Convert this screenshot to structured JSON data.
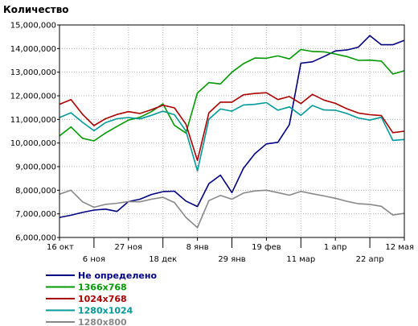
{
  "chart_data": {
    "type": "line",
    "ylabel": "Количество",
    "ylim": [
      6000000,
      15000000
    ],
    "y_ticks": [
      6000000,
      7000000,
      8000000,
      9000000,
      10000000,
      11000000,
      12000000,
      13000000,
      14000000,
      15000000
    ],
    "y_tick_labels": [
      "6,000,000",
      "7,000,000",
      "8,000,000",
      "9,000,000",
      "10,000,000",
      "11,000,000",
      "12,000,000",
      "13,000,000",
      "14,000,000",
      "15,000,000"
    ],
    "x_tick_labels": [
      {
        "text": "16 окт",
        "index": 0,
        "row": 1
      },
      {
        "text": "6 ноя",
        "index": 3,
        "row": 2
      },
      {
        "text": "27 ноя",
        "index": 6,
        "row": 1
      },
      {
        "text": "18 дек",
        "index": 9,
        "row": 2
      },
      {
        "text": "8 янв",
        "index": 12,
        "row": 1
      },
      {
        "text": "29 янв",
        "index": 15,
        "row": 2
      },
      {
        "text": "19 фев",
        "index": 18,
        "row": 1
      },
      {
        "text": "11 мар",
        "index": 21,
        "row": 2
      },
      {
        "text": "1 апр",
        "index": 24,
        "row": 1
      },
      {
        "text": "22 апр",
        "index": 27,
        "row": 2
      },
      {
        "text": "12 мая",
        "index": 30,
        "row": 1
      }
    ],
    "x_count": 31,
    "grid": true,
    "legend_position": "bottom-left",
    "series": [
      {
        "name": "Не определено",
        "color": "#000080",
        "values": [
          6850000,
          6940000,
          7060000,
          7160000,
          7200000,
          7100000,
          7520000,
          7620000,
          7820000,
          7940000,
          7960000,
          7540000,
          7310000,
          8280000,
          8640000,
          7900000,
          8930000,
          9550000,
          9960000,
          10030000,
          10780000,
          13380000,
          13440000,
          13660000,
          13900000,
          13940000,
          14060000,
          14550000,
          14160000,
          14160000,
          14350000
        ]
      },
      {
        "name": "1366x768",
        "color": "#009900",
        "values": [
          10300000,
          10680000,
          10200000,
          10090000,
          10420000,
          10700000,
          10970000,
          11090000,
          11330000,
          11660000,
          10750000,
          10420000,
          12120000,
          12560000,
          12500000,
          13000000,
          13360000,
          13600000,
          13590000,
          13690000,
          13560000,
          13960000,
          13880000,
          13860000,
          13770000,
          13660000,
          13500000,
          13510000,
          13470000,
          12920000,
          13060000
        ]
      },
      {
        "name": "1024x768",
        "color": "#AA0000",
        "values": [
          11640000,
          11840000,
          11220000,
          10740000,
          11030000,
          11210000,
          11330000,
          11250000,
          11410000,
          11600000,
          11490000,
          10800000,
          9260000,
          11280000,
          11730000,
          11730000,
          12040000,
          12100000,
          12130000,
          11840000,
          11970000,
          11670000,
          12060000,
          11820000,
          11680000,
          11450000,
          11270000,
          11200000,
          11160000,
          10440000,
          10500000
        ]
      },
      {
        "name": "1280x1024",
        "color": "#009999",
        "values": [
          11080000,
          11280000,
          10880000,
          10520000,
          10860000,
          11030000,
          11080000,
          11020000,
          11170000,
          11350000,
          11200000,
          10510000,
          8820000,
          11010000,
          11440000,
          11350000,
          11610000,
          11640000,
          11710000,
          11390000,
          11530000,
          11170000,
          11590000,
          11400000,
          11390000,
          11250000,
          11060000,
          10970000,
          11090000,
          10110000,
          10150000
        ]
      },
      {
        "name": "1280x800",
        "color": "#888888",
        "values": [
          7830000,
          8000000,
          7510000,
          7280000,
          7400000,
          7450000,
          7520000,
          7510000,
          7620000,
          7700000,
          7480000,
          6850000,
          6420000,
          7560000,
          7780000,
          7620000,
          7880000,
          7970000,
          8000000,
          7900000,
          7790000,
          7950000,
          7850000,
          7760000,
          7660000,
          7530000,
          7430000,
          7400000,
          7320000,
          6950000,
          7020000
        ]
      }
    ]
  }
}
